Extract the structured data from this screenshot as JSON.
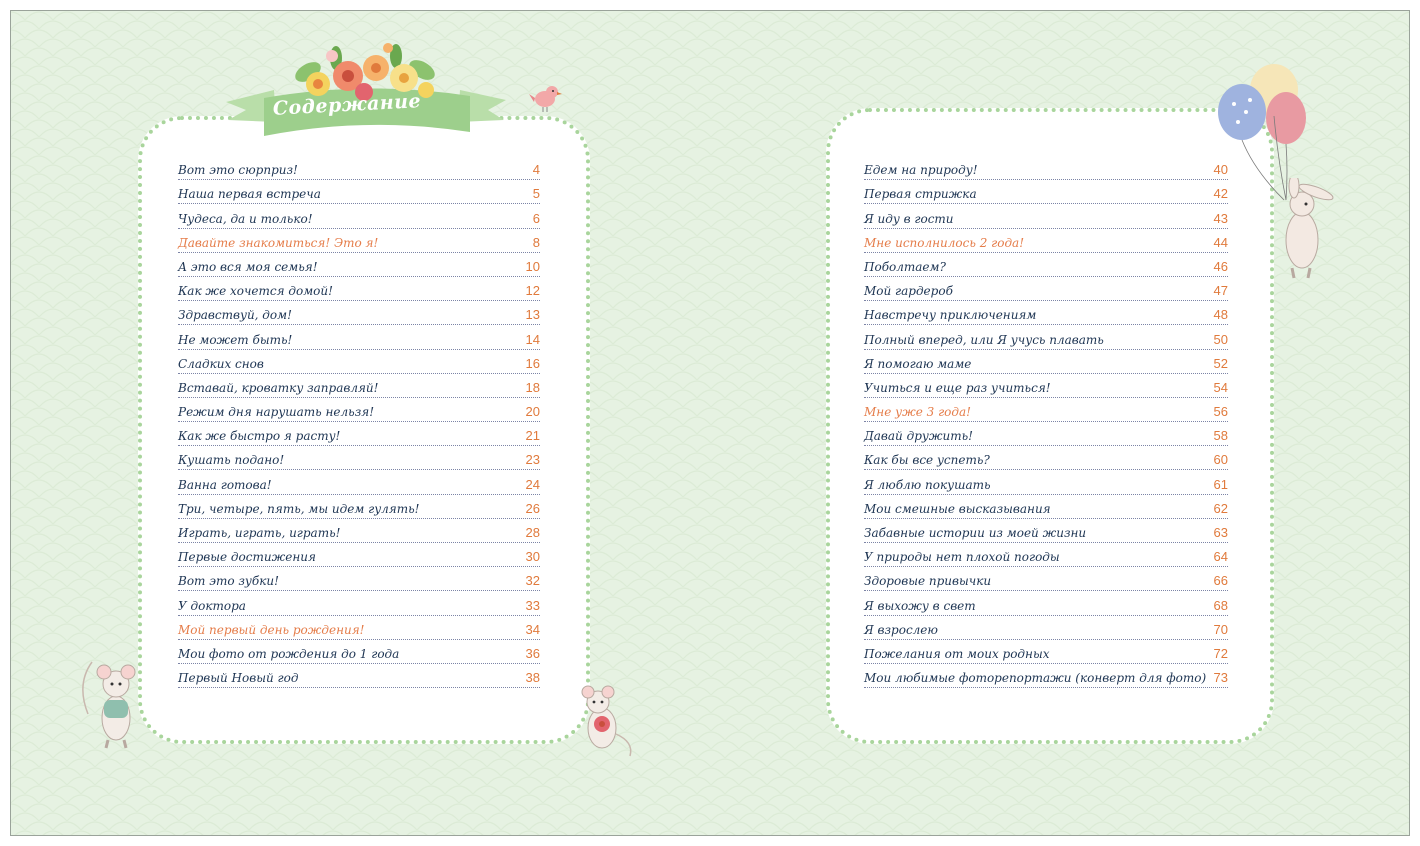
{
  "title": "Содержание",
  "colors": {
    "background": "#e6f2e2",
    "card_border": "#a9d59c",
    "text": "#1e3553",
    "accent": "#e07a3c",
    "banner": "#9dcf8c"
  },
  "left_column": [
    {
      "title": "Вот это сюрприз!",
      "page": "4"
    },
    {
      "title": "Наша первая встреча",
      "page": "5"
    },
    {
      "title": "Чудеса, да и только!",
      "page": "6"
    },
    {
      "title": "Давайте знакомиться! Это я!",
      "page": "8",
      "highlight": true
    },
    {
      "title": "А это вся моя семья!",
      "page": "10"
    },
    {
      "title": "Как же хочется домой!",
      "page": "12"
    },
    {
      "title": "Здравствуй, дом!",
      "page": "13"
    },
    {
      "title": "Не может быть!",
      "page": "14"
    },
    {
      "title": "Сладких снов",
      "page": "16"
    },
    {
      "title": "Вставай, кроватку заправляй!",
      "page": "18"
    },
    {
      "title": "Режим дня нарушать нельзя!",
      "page": "20"
    },
    {
      "title": "Как же быстро я расту!",
      "page": "21"
    },
    {
      "title": "Кушать подано!",
      "page": "23"
    },
    {
      "title": "Ванна готова!",
      "page": "24"
    },
    {
      "title": "Три, четыре, пять, мы идем гулять!",
      "page": "26"
    },
    {
      "title": "Играть, играть, играть!",
      "page": "28"
    },
    {
      "title": "Первые достижения",
      "page": "30"
    },
    {
      "title": "Вот это зубки!",
      "page": "32"
    },
    {
      "title": "У доктора",
      "page": "33"
    },
    {
      "title": "Мой первый день рождения!",
      "page": "34",
      "highlight": true
    },
    {
      "title": "Мои фото от рождения до 1 года",
      "page": "36"
    },
    {
      "title": "Первый Новый год",
      "page": "38"
    }
  ],
  "right_column": [
    {
      "title": "Едем на природу!",
      "page": "40"
    },
    {
      "title": "Первая стрижка",
      "page": "42"
    },
    {
      "title": "Я иду в гости",
      "page": "43"
    },
    {
      "title": "Мне исполнилось 2 года!",
      "page": "44",
      "highlight": true
    },
    {
      "title": "Поболтаем?",
      "page": "46"
    },
    {
      "title": "Мой гардероб",
      "page": "47"
    },
    {
      "title": "Навстречу приключениям",
      "page": "48"
    },
    {
      "title": "Полный вперед, или Я учусь плавать",
      "page": "50"
    },
    {
      "title": "Я помогаю маме",
      "page": "52"
    },
    {
      "title": "Учиться и еще раз учиться!",
      "page": "54"
    },
    {
      "title": "Мне уже 3 года!",
      "page": "56",
      "highlight": true
    },
    {
      "title": "Давай дружить!",
      "page": "58"
    },
    {
      "title": "Как бы все успеть?",
      "page": "60"
    },
    {
      "title": "Я люблю покушать",
      "page": "61"
    },
    {
      "title": "Мои смешные высказывания",
      "page": "62"
    },
    {
      "title": "Забавные истории из моей жизни",
      "page": "63"
    },
    {
      "title": "У природы нет плохой погоды",
      "page": "64"
    },
    {
      "title": "Здоровые привычки",
      "page": "66"
    },
    {
      "title": "Я выхожу в свет",
      "page": "68"
    },
    {
      "title": "Я взрослею",
      "page": "70"
    },
    {
      "title": "Пожелания от моих родных",
      "page": "72"
    },
    {
      "title": "Мои любимые фоторепортажи (конверт для фото)",
      "page": "73"
    }
  ],
  "illustrations": [
    "flower-bouquet-icon",
    "bird-icon",
    "balloons-icon",
    "bunny-icon",
    "mouse-icon",
    "mouse-with-flower-icon"
  ]
}
